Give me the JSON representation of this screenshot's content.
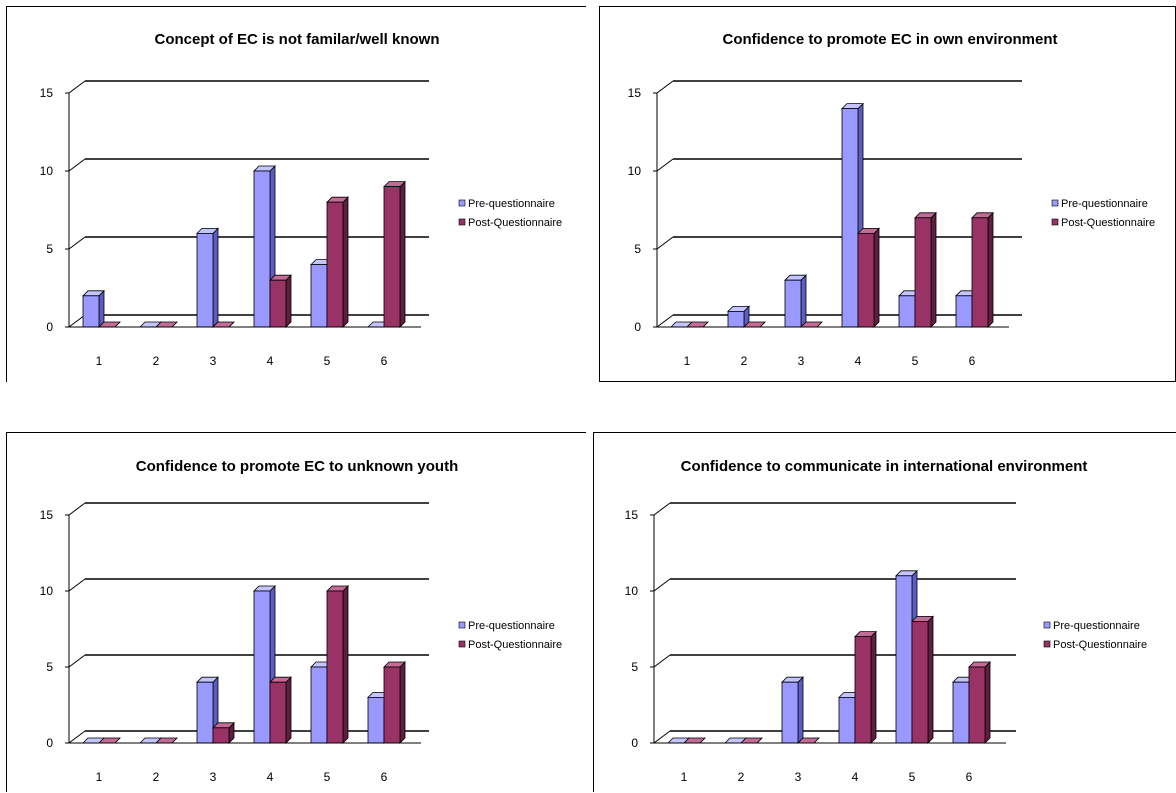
{
  "chart_data": [
    {
      "type": "bar",
      "title": "Concept of EC is not familar/well known",
      "categories": [
        "1",
        "2",
        "3",
        "4",
        "5",
        "6"
      ],
      "series": [
        {
          "name": "Pre-questionnaire",
          "values": [
            2,
            0,
            6,
            10,
            4,
            0
          ]
        },
        {
          "name": "Post-Questionnaire",
          "values": [
            0,
            0,
            0,
            3,
            8,
            9
          ]
        }
      ],
      "yticks": [
        "0",
        "5",
        "10",
        "15"
      ],
      "ylim": [
        0,
        15
      ],
      "grid": true,
      "legend": "right"
    },
    {
      "type": "bar",
      "title": "Confidence to promote EC in own environment",
      "categories": [
        "1",
        "2",
        "3",
        "4",
        "5",
        "6"
      ],
      "series": [
        {
          "name": "Pre-questionnaire",
          "values": [
            0,
            1,
            3,
            14,
            2,
            2
          ]
        },
        {
          "name": "Post-Questionnaire",
          "values": [
            0,
            0,
            0,
            6,
            7,
            7
          ]
        }
      ],
      "yticks": [
        "0",
        "5",
        "10",
        "15"
      ],
      "ylim": [
        0,
        15
      ],
      "grid": true,
      "legend": "right"
    },
    {
      "type": "bar",
      "title": "Confidence to promote EC to unknown youth",
      "categories": [
        "1",
        "2",
        "3",
        "4",
        "5",
        "6"
      ],
      "series": [
        {
          "name": "Pre-questionnaire",
          "values": [
            0,
            0,
            4,
            10,
            5,
            3
          ]
        },
        {
          "name": "Post-Questionnaire",
          "values": [
            0,
            0,
            1,
            4,
            10,
            5
          ]
        }
      ],
      "yticks": [
        "0",
        "5",
        "10",
        "15"
      ],
      "ylim": [
        0,
        15
      ],
      "grid": true,
      "legend": "right"
    },
    {
      "type": "bar",
      "title": "Confidence to communicate in international environment",
      "categories": [
        "1",
        "2",
        "3",
        "4",
        "5",
        "6"
      ],
      "series": [
        {
          "name": "Pre-questionnaire",
          "values": [
            0,
            0,
            4,
            3,
            11,
            4
          ]
        },
        {
          "name": "Post-Questionnaire",
          "values": [
            0,
            0,
            0,
            7,
            8,
            5
          ]
        }
      ],
      "yticks": [
        "0",
        "5",
        "10",
        "15"
      ],
      "ylim": [
        0,
        15
      ],
      "grid": true,
      "legend": "right"
    }
  ],
  "colors": {
    "pre_front": "#9999ff",
    "pre_side": "#5c5cc2",
    "pre_top": "#c4c4ff",
    "post_front": "#993366",
    "post_side": "#5e1f3f",
    "post_top": "#c46b96"
  }
}
